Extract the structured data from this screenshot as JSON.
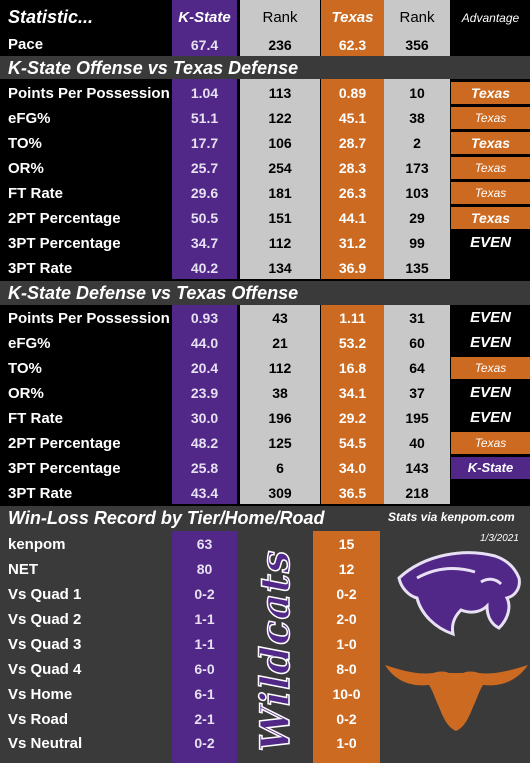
{
  "colors": {
    "kstate": "#512888",
    "texas": "#cc6a21",
    "gray": "#c8c8c8",
    "black": "#000000",
    "white": "#ffffff"
  },
  "header": {
    "title": "Statistic...",
    "kstate": "K-State",
    "rank1": "Rank",
    "texas": "Texas",
    "rank2": "Rank",
    "advantage": "Advantage"
  },
  "pace": {
    "label": "Pace",
    "ks": "67.4",
    "ks_rank": "236",
    "tx": "62.3",
    "tx_rank": "356"
  },
  "section1": {
    "title": "K-State Offense vs Texas Defense",
    "rows": [
      {
        "label": "Points Per Possession",
        "ks": "1.04",
        "ks_rank": "113",
        "tx": "0.89",
        "tx_rank": "10",
        "adv": "Texas",
        "adv_style": "texas-big"
      },
      {
        "label": "eFG%",
        "ks": "51.1",
        "ks_rank": "122",
        "tx": "45.1",
        "tx_rank": "38",
        "adv": "Texas",
        "adv_style": "texas-small"
      },
      {
        "label": "TO%",
        "ks": "17.7",
        "ks_rank": "106",
        "tx": "28.7",
        "tx_rank": "2",
        "adv": "Texas",
        "adv_style": "texas-big"
      },
      {
        "label": "OR%",
        "ks": "25.7",
        "ks_rank": "254",
        "tx": "28.3",
        "tx_rank": "173",
        "adv": "Texas",
        "adv_style": "texas-small"
      },
      {
        "label": "FT Rate",
        "ks": "29.6",
        "ks_rank": "181",
        "tx": "26.3",
        "tx_rank": "103",
        "adv": "Texas",
        "adv_style": "texas-small"
      },
      {
        "label": "2PT Percentage",
        "ks": "50.5",
        "ks_rank": "151",
        "tx": "44.1",
        "tx_rank": "29",
        "adv": "Texas",
        "adv_style": "texas-big"
      },
      {
        "label": "3PT Percentage",
        "ks": "34.7",
        "ks_rank": "112",
        "tx": "31.2",
        "tx_rank": "99",
        "adv": "EVEN",
        "adv_style": "even"
      },
      {
        "label": "3PT Rate",
        "ks": "40.2",
        "ks_rank": "134",
        "tx": "36.9",
        "tx_rank": "135",
        "adv": "",
        "adv_style": "none"
      }
    ]
  },
  "section2": {
    "title": "K-State Defense vs Texas Offense",
    "rows": [
      {
        "label": "Points Per Possession",
        "ks": "0.93",
        "ks_rank": "43",
        "tx": "1.11",
        "tx_rank": "31",
        "adv": "EVEN",
        "adv_style": "even"
      },
      {
        "label": "eFG%",
        "ks": "44.0",
        "ks_rank": "21",
        "tx": "53.2",
        "tx_rank": "60",
        "adv": "EVEN",
        "adv_style": "even"
      },
      {
        "label": "TO%",
        "ks": "20.4",
        "ks_rank": "112",
        "tx": "16.8",
        "tx_rank": "64",
        "adv": "Texas",
        "adv_style": "texas-small"
      },
      {
        "label": "OR%",
        "ks": "23.9",
        "ks_rank": "38",
        "tx": "34.1",
        "tx_rank": "37",
        "adv": "EVEN",
        "adv_style": "even"
      },
      {
        "label": "FT Rate",
        "ks": "30.0",
        "ks_rank": "196",
        "tx": "29.2",
        "tx_rank": "195",
        "adv": "EVEN",
        "adv_style": "even"
      },
      {
        "label": "2PT Percentage",
        "ks": "48.2",
        "ks_rank": "125",
        "tx": "54.5",
        "tx_rank": "40",
        "adv": "Texas",
        "adv_style": "texas-small"
      },
      {
        "label": "3PT Percentage",
        "ks": "25.8",
        "ks_rank": "6",
        "tx": "34.0",
        "tx_rank": "143",
        "adv": "K-State",
        "adv_style": "kstate"
      },
      {
        "label": "3PT Rate",
        "ks": "43.4",
        "ks_rank": "309",
        "tx": "36.5",
        "tx_rank": "218",
        "adv": "",
        "adv_style": "none"
      }
    ]
  },
  "section3": {
    "title": "Win-Loss Record by Tier/Home/Road",
    "credit": "Stats via kenpom.com",
    "date": "1/3/2021",
    "wordmark": "Wildcats",
    "rows": [
      {
        "label": "kenpom",
        "ks": "63",
        "tx": "15"
      },
      {
        "label": "NET",
        "ks": "80",
        "tx": "12"
      },
      {
        "label": "Vs Quad 1",
        "ks": "0-2",
        "tx": "0-2"
      },
      {
        "label": "Vs Quad 2",
        "ks": "1-1",
        "tx": "2-0"
      },
      {
        "label": "Vs Quad 3",
        "ks": "1-1",
        "tx": "1-0"
      },
      {
        "label": "Vs Quad 4",
        "ks": "6-0",
        "tx": "8-0"
      },
      {
        "label": "Vs Home",
        "ks": "6-1",
        "tx": "10-0"
      },
      {
        "label": "Vs Road",
        "ks": "2-1",
        "tx": "0-2"
      },
      {
        "label": "Vs Neutral",
        "ks": "0-2",
        "tx": "1-0"
      }
    ]
  },
  "chart_data": {
    "type": "table",
    "title": "Statistic...",
    "columns": [
      "Statistic",
      "K-State",
      "Rank",
      "Texas",
      "Rank",
      "Advantage"
    ]
  }
}
